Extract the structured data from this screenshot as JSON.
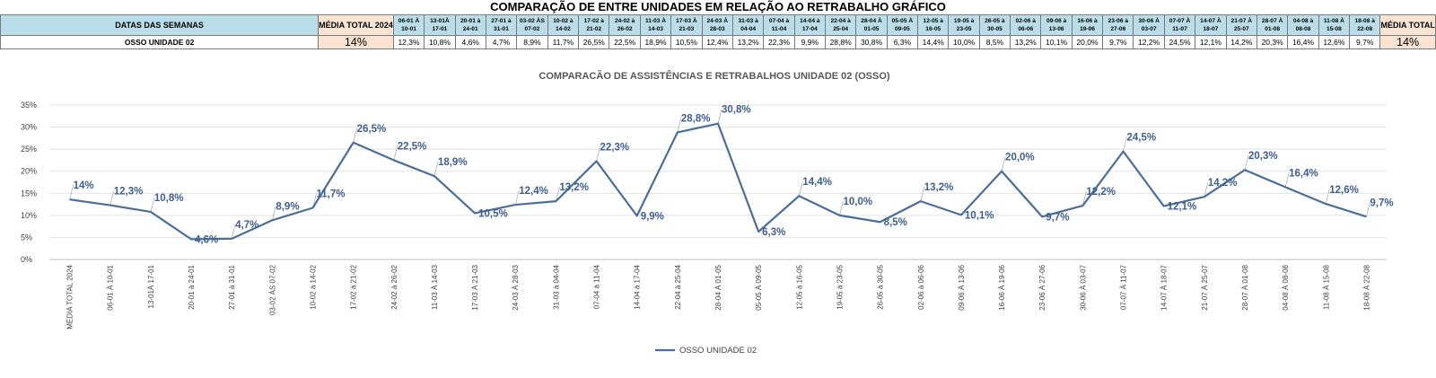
{
  "page_title": "COMPARAÇÃO DE ENTRE UNIDADES EM RELAÇÃO AO RETRABALHO GRÁFICO",
  "table": {
    "header_label": "DATAS DAS SEMANAS",
    "avg_label_start": "MÉDIA TOTAL 2024",
    "avg_label_end": "MÉDIA TOTAL",
    "row_label": "OSSO UNIDADE 02",
    "avg_value": "14%",
    "weeks": [
      [
        "06-01 À",
        "10-01"
      ],
      [
        "13-01À",
        "17-01"
      ],
      [
        "20-01 à",
        "24-01"
      ],
      [
        "27-01 à",
        "31-01"
      ],
      [
        "03-02 ÀS",
        "07-02"
      ],
      [
        "10-02 à",
        "14-02"
      ],
      [
        "17-02 à",
        "21-02"
      ],
      [
        "24-02 à",
        "26-02"
      ],
      [
        "11-03 À",
        "14-03"
      ],
      [
        "17-03 À",
        "21-03"
      ],
      [
        "24-03 À",
        "28-03"
      ],
      [
        "31-03 à",
        "04-04"
      ],
      [
        "07-04 à",
        "11-04"
      ],
      [
        "14-04 à",
        "17-04"
      ],
      [
        "22-04 à",
        "25-04"
      ],
      [
        "28-04 À",
        "01-05"
      ],
      [
        "05-05 À",
        "09-05"
      ],
      [
        "12-05 à",
        "16-05"
      ],
      [
        "19-05 à",
        "23-05"
      ],
      [
        "26-05 à",
        "30-05"
      ],
      [
        "02-06 à",
        "06-06"
      ],
      [
        "09-06 à",
        "13-06"
      ],
      [
        "16-06 à",
        "19-06"
      ],
      [
        "23-06 à",
        "27-06"
      ],
      [
        "30-06 À",
        "03-07"
      ],
      [
        "07-07 À",
        "11-07"
      ],
      [
        "14-07 À",
        "18-07"
      ],
      [
        "21-07 À",
        "25-07"
      ],
      [
        "28-07 À",
        "01-08"
      ],
      [
        "04-08 à",
        "08-08"
      ],
      [
        "11-08 À",
        "15-08"
      ],
      [
        "18-08 à",
        "22-08"
      ]
    ],
    "values": [
      "12,3%",
      "10,8%",
      "4,6%",
      "4,7%",
      "8,9%",
      "11,7%",
      "26,5%",
      "22,5%",
      "18,9%",
      "10,5%",
      "12,4%",
      "13,2%",
      "22,3%",
      "9,9%",
      "28,8%",
      "30,8%",
      "6,3%",
      "14,4%",
      "10,0%",
      "8,5%",
      "13,2%",
      "10,1%",
      "20,0%",
      "9,7%",
      "12,2%",
      "24,5%",
      "12,1%",
      "14,2%",
      "20,3%",
      "16,4%",
      "12,6%",
      "9,7%"
    ]
  },
  "chart_data": {
    "type": "line",
    "title": "COMPARACÃO DE ASSISTÊNCIAS E RETRABALHOS UNIDADE 02  (OSSO)",
    "xlabel": "",
    "ylabel": "",
    "ylim": [
      0,
      35
    ],
    "yticks": [
      "0%",
      "5%",
      "10%",
      "15%",
      "20%",
      "25%",
      "30%",
      "35%"
    ],
    "grid": true,
    "legend": "bottom",
    "color": "#4a6e9b",
    "categories": [
      "MÉDIA TOTAL 2024",
      "06-01 À 10-01",
      "13-01À 17-01",
      "20-01 à 24-01",
      "27-01 à 31-01",
      "03-02 ÀS 07-02",
      "10-02 à 14-02",
      "17-02 à 21-02",
      "24-02 à 26-02",
      "11-03  À 14-03",
      "17-03 À 21-03",
      "24-03 À 28-03",
      "31-03 à 04-04",
      "07-04 à 11-04",
      "14-04 à 17-04",
      "22-04 à 25-04",
      "28-04 À 01-05",
      "05-05 À 09-05",
      "12-05 à 16-05",
      "19-05 à 23-05",
      "26-05 à 30-05",
      "02-06 à 06-06",
      "09-06 À 13-06",
      "16-06 À 19-06",
      "23-06 À 27-06",
      "30-06 À 03-07",
      "07-07 À 11-07",
      "14-07 À 18-07",
      "21-07 À 25-07",
      "28-07 À 01-08",
      "04-08 À 08-08",
      "11-08 À 15-08",
      "18-08 À 22-08"
    ],
    "series": [
      {
        "name": "OSSO UNIDADE 02",
        "values": [
          13.6,
          12.3,
          10.8,
          4.6,
          4.7,
          8.9,
          11.7,
          26.5,
          22.5,
          18.9,
          10.5,
          12.4,
          13.2,
          22.3,
          9.9,
          28.8,
          30.8,
          6.3,
          14.4,
          10.0,
          8.5,
          13.2,
          10.1,
          20.0,
          9.7,
          12.2,
          24.5,
          12.1,
          14.2,
          20.3,
          16.4,
          12.6,
          9.7
        ],
        "labels": [
          "14%",
          "12,3%",
          "10,8%",
          "4,6%",
          "4,7%",
          "8,9%",
          "11,7%",
          "26,5%",
          "22,5%",
          "18,9%",
          "10,5%",
          "12,4%",
          "13,2%",
          "22,3%",
          "9,9%",
          "28,8%",
          "30,8%",
          "6,3%",
          "14,4%",
          "10,0%",
          "8,5%",
          "13,2%",
          "10,1%",
          "20,0%",
          "9,7%",
          "12,2%",
          "24,5%",
          "12,1%",
          "14,2%",
          "20,3%",
          "16,4%",
          "12,6%",
          "9,7%"
        ]
      }
    ]
  }
}
